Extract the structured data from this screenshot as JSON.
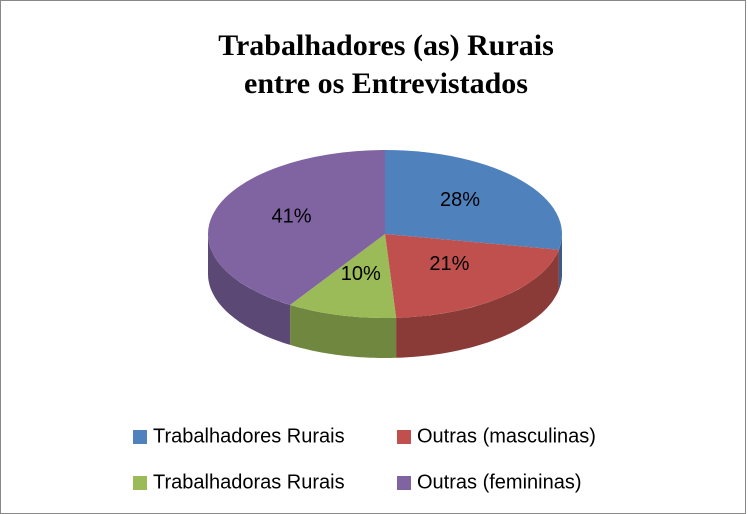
{
  "chart_data": {
    "type": "pie3d",
    "title": [
      "Trabalhadores (as) Rurais",
      "entre os Entrevistados"
    ],
    "categories": [
      "Trabalhadores Rurais",
      "Outras (masculinas)",
      "Trabalhadoras Rurais",
      "Outras (femininas)"
    ],
    "values": [
      28,
      21,
      10,
      41
    ],
    "value_labels": [
      "28%",
      "21%",
      "10%",
      "41%"
    ],
    "colors": [
      "#4f81bd",
      "#c0504d",
      "#9bbb59",
      "#8064a2"
    ],
    "legend": "bottom"
  }
}
